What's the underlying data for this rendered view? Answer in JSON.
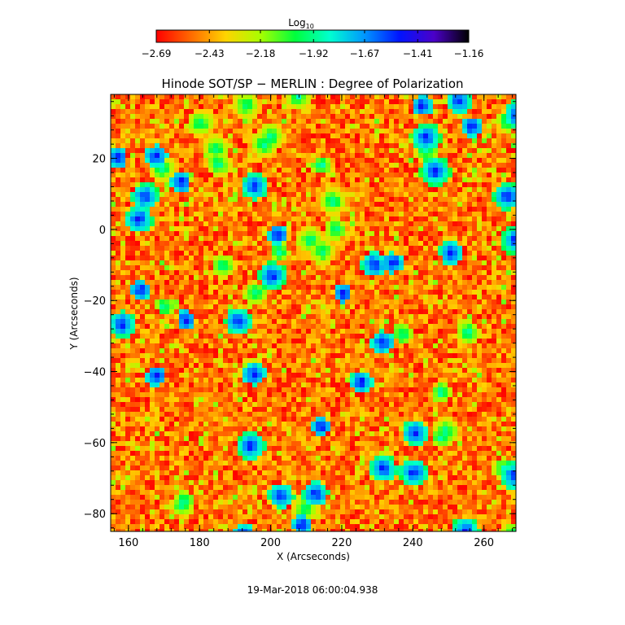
{
  "chart_data": {
    "type": "heatmap",
    "title": "Hinode SOT/SP − MERLIN : Degree of Polarization",
    "xlabel": "X (Arcseconds)",
    "ylabel": "Y (Arcseconds)",
    "xlim": [
      155,
      269
    ],
    "ylim": [
      -85,
      38
    ],
    "x_ticks": [
      160,
      180,
      200,
      220,
      240,
      260
    ],
    "y_ticks": [
      20,
      0,
      -20,
      -40,
      -60,
      -80
    ],
    "x_tick_labels": [
      "160",
      "180",
      "200",
      "220",
      "240",
      "260"
    ],
    "y_tick_labels": [
      "20",
      "0",
      "−20",
      "−40",
      "−60",
      "−80"
    ],
    "value_scale": "log10",
    "colorbar": {
      "label_main": "Log",
      "label_sub": "10",
      "range": [
        -2.69,
        -1.16
      ],
      "ticks": [
        -2.69,
        -2.43,
        -2.18,
        -1.92,
        -1.67,
        -1.41,
        -1.16
      ],
      "tick_labels": [
        "−2.69",
        "−2.43",
        "−2.18",
        "−1.92",
        "−1.67",
        "−1.41",
        "−1.16"
      ],
      "colormap": [
        "#ff0000",
        "#ff6a00",
        "#ffd400",
        "#a8ff00",
        "#00ff3c",
        "#00ffd0",
        "#0096ff",
        "#0014ff",
        "#4b00c8",
        "#000000"
      ]
    },
    "colors": {
      "background_low": "#ff3a0a",
      "mid": "#ffa000",
      "patch_green": "#00ff40",
      "patch_blue": "#1030ff"
    },
    "timestamp": "19-Mar-2018 06:00:04.938"
  }
}
